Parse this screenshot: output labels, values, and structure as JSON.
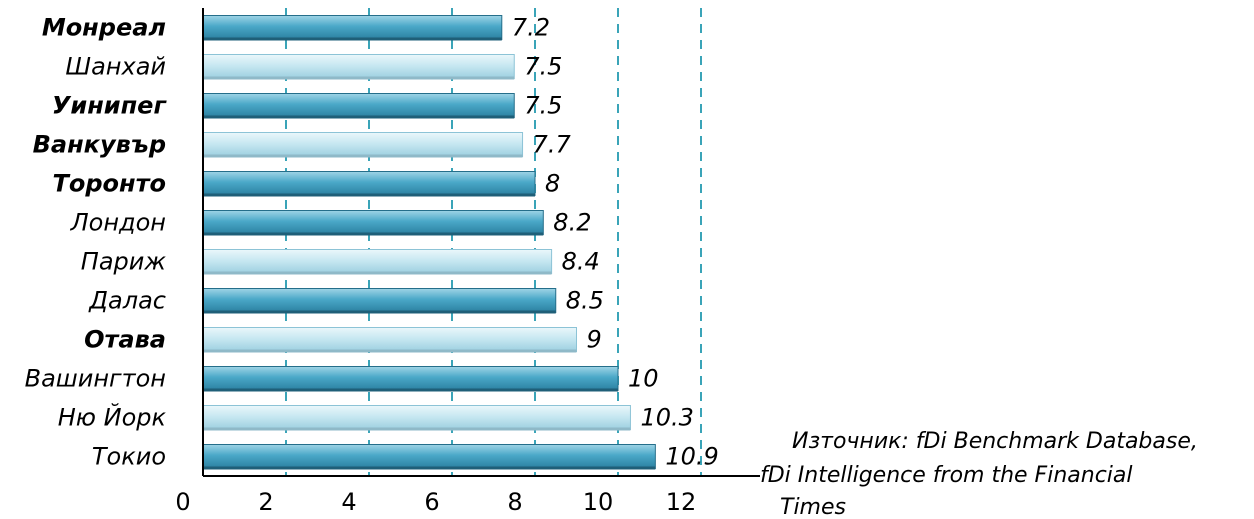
{
  "chart_data": {
    "type": "bar",
    "orientation": "horizontal",
    "categories": [
      "Монреал",
      "Шанхай",
      "Уинипег",
      "Ванкувър",
      "Торонто",
      "Лондон",
      "Париж",
      "Далас",
      "Отава",
      "Вашингтон",
      "Ню Йорк",
      "Токио"
    ],
    "bold_categories": [
      "Монреал",
      "Уинипег",
      "Ванкувър",
      "Торонто",
      "Отава"
    ],
    "values": [
      7.2,
      7.5,
      7.5,
      7.7,
      8,
      8.2,
      8.4,
      8.5,
      9,
      10,
      10.3,
      10.9
    ],
    "value_labels": [
      "7.2",
      "7.5",
      "7.5",
      "7.7",
      "8",
      "8.2",
      "8.4",
      "8.5",
      "9",
      "10",
      "10.3",
      "10.9"
    ],
    "bar_styles": [
      "dark",
      "light",
      "dark",
      "light",
      "dark",
      "dark",
      "light",
      "dark",
      "light",
      "dark",
      "light",
      "dark"
    ],
    "x_ticks": [
      "0",
      "2",
      "4",
      "6",
      "8",
      "10",
      "12"
    ],
    "xlim": [
      0,
      12.8
    ],
    "grid": "vertical dashed",
    "colors": {
      "dark_bar": "#3f9cbd",
      "light_bar": "#bfe3ee",
      "grid": "#3aa4b8"
    },
    "source_lines": [
      "Източник: fDi Benchmark Database,",
      "fDi Intelligence from the Financial",
      "Times"
    ]
  }
}
